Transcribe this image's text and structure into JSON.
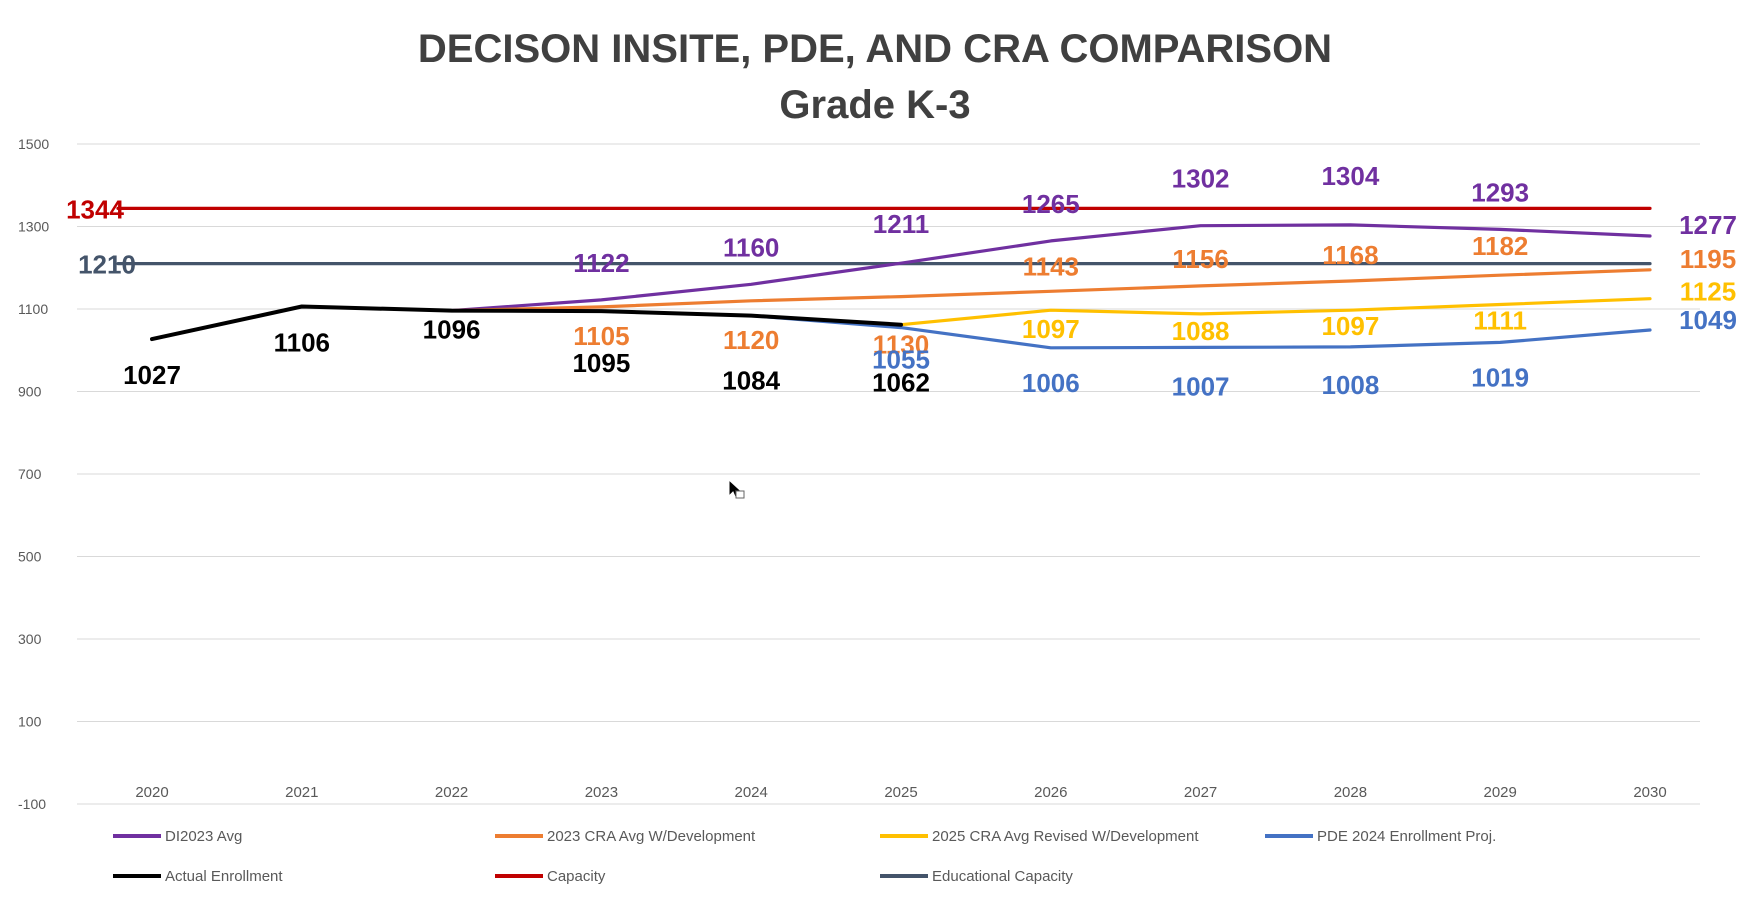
{
  "chart_data": {
    "type": "line",
    "title": "DECISON INSITE, PDE, AND CRA COMPARISON",
    "subtitle": "Grade K-3",
    "categories": [
      "2020",
      "2021",
      "2022",
      "2023",
      "2024",
      "2025",
      "2026",
      "2027",
      "2028",
      "2029",
      "2030"
    ],
    "ylim": [
      -100,
      1500
    ],
    "yticks": [
      -100,
      100,
      300,
      500,
      700,
      900,
      1100,
      1300,
      1500
    ],
    "grid": true,
    "legend_position": "bottom",
    "series": [
      {
        "key": "di",
        "name": "DI2023 Avg",
        "color": "#7030a0",
        "values": [
          null,
          null,
          1096,
          1122,
          1160,
          1211,
          1265,
          1302,
          1304,
          1293,
          1277
        ],
        "labels": [
          null,
          null,
          null,
          "1122",
          "1160",
          "1211",
          "1265",
          "1302",
          "1304",
          "1293",
          "1277"
        ]
      },
      {
        "key": "cra2023",
        "name": "2023 CRA Avg W/Development",
        "color": "#ed7d31",
        "values": [
          null,
          null,
          1096,
          1105,
          1120,
          1130,
          1143,
          1156,
          1168,
          1182,
          1195
        ],
        "labels": [
          null,
          null,
          null,
          "1105",
          "1120",
          "1130",
          "1143",
          "1156",
          "1168",
          "1182",
          "1195"
        ]
      },
      {
        "key": "cra2025",
        "name": "2025 CRA Avg Revised W/Development",
        "color": "#ffc000",
        "values": [
          null,
          null,
          null,
          null,
          null,
          1062,
          1097,
          1088,
          1097,
          1111,
          1125
        ],
        "labels": [
          null,
          null,
          null,
          null,
          null,
          null,
          "1097",
          "1088",
          "1097",
          "1111",
          "1125"
        ]
      },
      {
        "key": "pde",
        "name": "PDE 2024 Enrollment Proj.",
        "color": "#4472c4",
        "values": [
          null,
          null,
          null,
          null,
          1084,
          1055,
          1006,
          1007,
          1008,
          1019,
          1049
        ],
        "labels": [
          null,
          null,
          null,
          null,
          null,
          "1055",
          "1006",
          "1007",
          "1008",
          "1019",
          "1049"
        ]
      },
      {
        "key": "actual",
        "name": "Actual Enrollment",
        "color": "#000000",
        "values": [
          1027,
          1106,
          1096,
          1095,
          1084,
          1062,
          null,
          null,
          null,
          null,
          null
        ],
        "labels": [
          "1027",
          "1106",
          "1096",
          "1095",
          "1084",
          "1062",
          null,
          null,
          null,
          null,
          null
        ]
      },
      {
        "key": "capacity",
        "name": "Capacity",
        "color": "#c00000",
        "values": [
          1344,
          1344,
          1344,
          1344,
          1344,
          1344,
          1344,
          1344,
          1344,
          1344,
          1344
        ],
        "labels": [
          "1344",
          null,
          null,
          null,
          null,
          null,
          null,
          null,
          null,
          null,
          null
        ]
      },
      {
        "key": "edcap",
        "name": "Educational Capacity",
        "color": "#44546a",
        "values": [
          1210,
          1210,
          1210,
          1210,
          1210,
          1210,
          1210,
          1210,
          1210,
          1210,
          1210
        ],
        "labels": [
          "1210",
          null,
          null,
          null,
          null,
          null,
          null,
          null,
          null,
          null,
          null
        ]
      }
    ]
  },
  "legend_rows": [
    [
      "di",
      "cra2023",
      "cra2025",
      "pde"
    ],
    [
      "actual",
      "capacity",
      "edcap"
    ]
  ]
}
